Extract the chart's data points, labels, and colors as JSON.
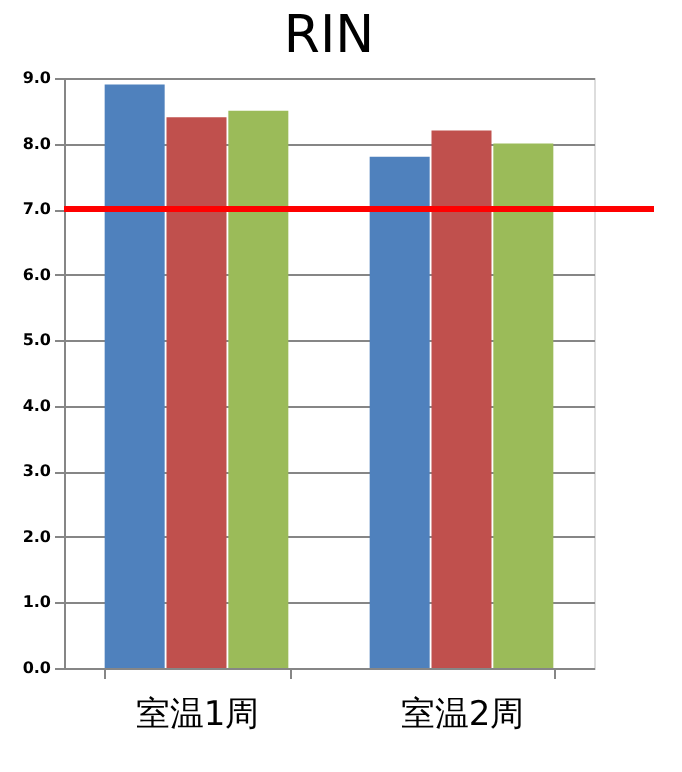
{
  "chart_data": {
    "type": "bar",
    "title": "RIN",
    "categories": [
      "室温1周",
      "室温2周"
    ],
    "series": [
      {
        "color": "#4f81bd",
        "values": [
          8.9,
          7.8
        ]
      },
      {
        "color": "#c0504d",
        "values": [
          8.4,
          8.2
        ]
      },
      {
        "color": "#9bbb59",
        "values": [
          8.5,
          8.0
        ]
      }
    ],
    "ylim": [
      0,
      9
    ],
    "yticks": [
      {
        "value": 0,
        "label": "0.0"
      },
      {
        "value": 1,
        "label": "1.0"
      },
      {
        "value": 2,
        "label": "2.0"
      },
      {
        "value": 3,
        "label": "3.0"
      },
      {
        "value": 4,
        "label": "4.0"
      },
      {
        "value": 5,
        "label": "5.0"
      },
      {
        "value": 6,
        "label": "6.0"
      },
      {
        "value": 7,
        "label": "7.0"
      },
      {
        "value": 8,
        "label": "8.0"
      },
      {
        "value": 9,
        "label": "9.0"
      }
    ],
    "grid": "y",
    "legend": false,
    "ref_lines": [
      {
        "axis": "y",
        "value": 7,
        "color": "#ff0000"
      }
    ]
  }
}
